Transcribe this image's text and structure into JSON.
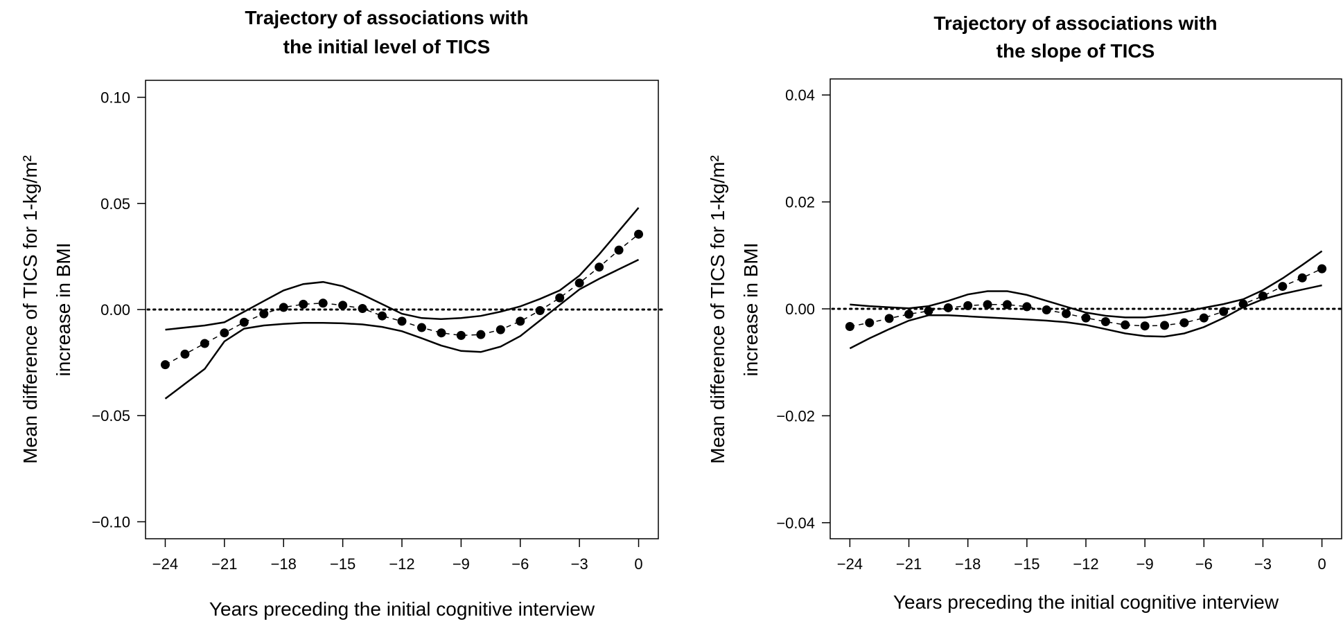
{
  "chart_data": [
    {
      "type": "line",
      "title_lines": [
        "Trajectory of associations with",
        "the initial level of TICS"
      ],
      "xlabel": "Years preceding the initial cognitive interview",
      "ylabel_lines": [
        "Mean difference of TICS for 1-kg/m²",
        "increase in BMI"
      ],
      "xlim": [
        -25,
        1
      ],
      "ylim": [
        -0.108,
        0.108
      ],
      "xticks": [
        -24,
        -21,
        -18,
        -15,
        -12,
        -9,
        -6,
        -3,
        0
      ],
      "xtick_labels": [
        "−24",
        "−21",
        "−18",
        "−15",
        "−12",
        "−9",
        "−6",
        "−3",
        "0"
      ],
      "yticks": [
        -0.1,
        -0.05,
        0.0,
        0.05,
        0.1
      ],
      "ytick_labels": [
        "−0.10",
        "−0.05",
        "0.00",
        "0.05",
        "0.10"
      ],
      "reference_line": 0,
      "series": [
        {
          "name": "estimate",
          "x": [
            -24,
            -23,
            -22,
            -21,
            -20,
            -19,
            -18,
            -17,
            -16,
            -15,
            -14,
            -13,
            -12,
            -11,
            -10,
            -9,
            -8,
            -7,
            -6,
            -5,
            -4,
            -3,
            -2,
            -1,
            0
          ],
          "values": [
            -0.026,
            -0.021,
            -0.016,
            -0.011,
            -0.006,
            -0.002,
            0.001,
            0.0025,
            0.003,
            0.002,
            0.0005,
            -0.003,
            -0.0055,
            -0.0085,
            -0.011,
            -0.0122,
            -0.0118,
            -0.0095,
            -0.0055,
            -0.0005,
            0.0055,
            0.0125,
            0.02,
            0.028,
            0.0355
          ]
        },
        {
          "name": "upper_ci",
          "x": [
            -24,
            -22,
            -21,
            -20,
            -19,
            -18,
            -17,
            -16,
            -15,
            -14,
            -13,
            -12,
            -11,
            -10,
            -9,
            -8,
            -7,
            -6,
            -5,
            -4,
            -3,
            -2,
            -1,
            0
          ],
          "values": [
            -0.0095,
            -0.0075,
            -0.006,
            -0.001,
            0.004,
            0.009,
            0.012,
            0.013,
            0.011,
            0.007,
            0.0025,
            -0.002,
            -0.004,
            -0.0045,
            -0.004,
            -0.003,
            -0.001,
            0.0015,
            0.005,
            0.009,
            0.016,
            0.026,
            0.037,
            0.048
          ]
        },
        {
          "name": "lower_ci",
          "x": [
            -24,
            -23,
            -22,
            -21,
            -20,
            -19,
            -18,
            -17,
            -16,
            -15,
            -14,
            -13,
            -12,
            -11,
            -10,
            -9,
            -8,
            -7,
            -6,
            -5,
            -4,
            -3,
            -2,
            -1,
            0
          ],
          "values": [
            -0.042,
            -0.035,
            -0.028,
            -0.015,
            -0.009,
            -0.0075,
            -0.0068,
            -0.0063,
            -0.0063,
            -0.0065,
            -0.007,
            -0.0082,
            -0.0102,
            -0.0135,
            -0.017,
            -0.0195,
            -0.02,
            -0.0175,
            -0.0125,
            -0.0052,
            0.0022,
            0.0095,
            0.0145,
            0.019,
            0.0235
          ]
        }
      ]
    },
    {
      "type": "line",
      "title_lines": [
        "Trajectory of associations with",
        "the slope of TICS"
      ],
      "xlabel": "Years preceding the initial cognitive interview",
      "ylabel_lines": [
        "Mean difference of TICS for 1-kg/m²",
        "increase in BMI"
      ],
      "xlim": [
        -25,
        1
      ],
      "ylim": [
        -0.043,
        0.043
      ],
      "xticks": [
        -24,
        -21,
        -18,
        -15,
        -12,
        -9,
        -6,
        -3,
        0
      ],
      "xtick_labels": [
        "−24",
        "−21",
        "−18",
        "−15",
        "−12",
        "−9",
        "−6",
        "−3",
        "0"
      ],
      "yticks": [
        -0.04,
        -0.02,
        0.0,
        0.02,
        0.04
      ],
      "ytick_labels": [
        "−0.04",
        "−0.02",
        "0.00",
        "0.02",
        "0.04"
      ],
      "reference_line": 0,
      "series": [
        {
          "name": "estimate",
          "x": [
            -24,
            -23,
            -22,
            -21,
            -20,
            -19,
            -18,
            -17,
            -16,
            -15,
            -14,
            -13,
            -12,
            -11,
            -10,
            -9,
            -8,
            -7,
            -6,
            -5,
            -4,
            -3,
            -2,
            -1,
            0
          ],
          "values": [
            -0.0033,
            -0.0026,
            -0.0018,
            -0.001,
            -0.0004,
            0.0002,
            0.0006,
            0.0008,
            0.0008,
            0.0004,
            -0.0002,
            -0.0009,
            -0.0017,
            -0.0024,
            -0.003,
            -0.0032,
            -0.0031,
            -0.0026,
            -0.0017,
            -0.0005,
            0.0009,
            0.0024,
            0.0042,
            0.0058,
            0.0075
          ]
        },
        {
          "name": "upper_ci",
          "x": [
            -24,
            -23,
            -22,
            -21,
            -20,
            -19,
            -18,
            -17,
            -16,
            -15,
            -14,
            -13,
            -12,
            -11,
            -10,
            -9,
            -8,
            -7,
            -6,
            -5,
            -4,
            -3,
            -2,
            -1,
            0
          ],
          "values": [
            0.0008,
            0.0005,
            0.0003,
            0.0001,
            0.0005,
            0.0015,
            0.0027,
            0.0033,
            0.0033,
            0.0026,
            0.0015,
            0.0004,
            -0.0007,
            -0.0013,
            -0.0016,
            -0.0016,
            -0.0012,
            -0.0006,
            0.0002,
            0.0009,
            0.0018,
            0.0035,
            0.0057,
            0.0082,
            0.0108
          ]
        },
        {
          "name": "lower_ci",
          "x": [
            -24,
            -23,
            -22,
            -21,
            -20,
            -19,
            -18,
            -17,
            -16,
            -15,
            -14,
            -13,
            -12,
            -11,
            -10,
            -9,
            -8,
            -7,
            -6,
            -5,
            -4,
            -3,
            -2,
            -1,
            0
          ],
          "values": [
            -0.0074,
            -0.0055,
            -0.0038,
            -0.0022,
            -0.0012,
            -0.0012,
            -0.0014,
            -0.0016,
            -0.0018,
            -0.002,
            -0.0022,
            -0.0025,
            -0.003,
            -0.0038,
            -0.0046,
            -0.0051,
            -0.0052,
            -0.0046,
            -0.0034,
            -0.0017,
            0.0003,
            0.0018,
            0.0028,
            0.0036,
            0.0044
          ]
        }
      ]
    }
  ]
}
